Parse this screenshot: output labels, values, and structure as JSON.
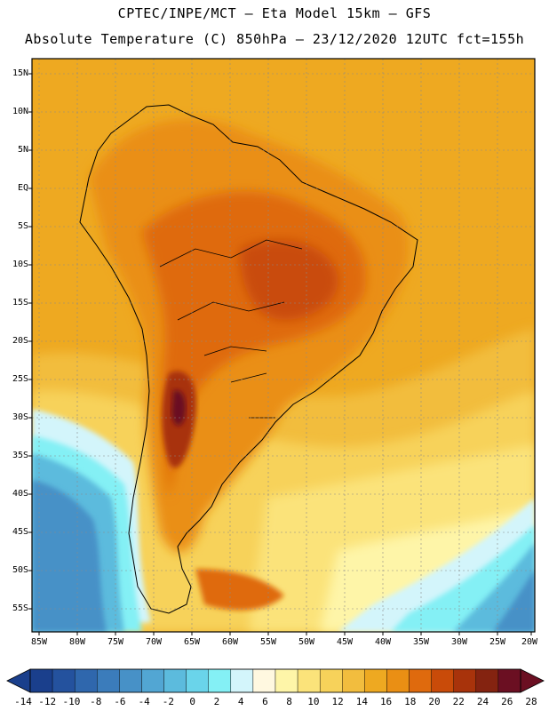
{
  "title_line1": "CPTEC/INPE/MCT —  Eta Model 15km — GFS",
  "title_line2": "Absolute Temperature (C) 850hPa — 23/12/2020 12UTC fct=155h",
  "lat_labels": [
    "15N",
    "10N",
    "5N",
    "EQ",
    "5S",
    "10S",
    "15S",
    "20S",
    "25S",
    "30S",
    "35S",
    "40S",
    "45S",
    "50S",
    "55S"
  ],
  "lon_labels": [
    "85W",
    "80W",
    "75W",
    "70W",
    "65W",
    "60W",
    "55W",
    "50W",
    "45W",
    "40W",
    "35W",
    "30W",
    "25W",
    "20W"
  ],
  "colorbar": {
    "labels": [
      "-14",
      "-12",
      "-10",
      "-8",
      "-6",
      "-4",
      "-2",
      "0",
      "2",
      "4",
      "6",
      "8",
      "10",
      "12",
      "14",
      "16",
      "18",
      "20",
      "22",
      "24",
      "26",
      "28"
    ],
    "colors": [
      "#1a3f8c",
      "#24529e",
      "#2f67ad",
      "#3b7cbb",
      "#4791c7",
      "#52a6d3",
      "#5cbbdd",
      "#6ad4ea",
      "#84f0f5",
      "#d3f5fb",
      "#fff8e0",
      "#fef5a8",
      "#fbe37a",
      "#f7d25a",
      "#f2bd3e",
      "#eea921",
      "#ea8f14",
      "#df6a0d",
      "#c94b09",
      "#a8330b",
      "#842310",
      "#6b0f22"
    ]
  }
}
